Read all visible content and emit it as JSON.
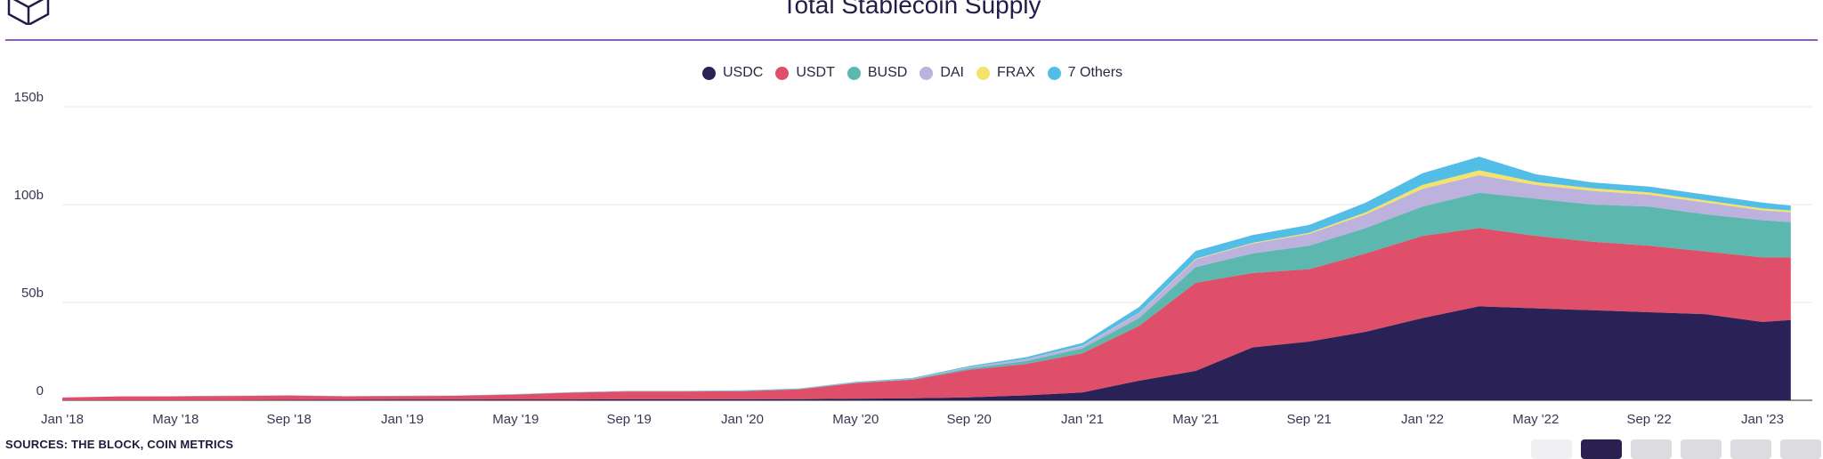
{
  "title": "Total Stablecoin Supply",
  "sources": "SOURCES: THE BLOCK, COIN METRICS",
  "colors": {
    "USDC": "#2a2256",
    "USDT": "#df4f69",
    "BUSD": "#5cb8ae",
    "DAI": "#bdb1de",
    "FRAX": "#f3e36a",
    "Others": "#52bde6",
    "accent_rule": "#8b5fbf"
  },
  "chart_data": {
    "type": "area",
    "stacked": true,
    "title": "Total Stablecoin Supply",
    "ylim": [
      0,
      150000000000
    ],
    "yticks": [
      "0",
      "50b",
      "100b",
      "150b"
    ],
    "xticks": [
      "Jan '18",
      "May '18",
      "Sep '18",
      "Jan '19",
      "May '19",
      "Sep '19",
      "Jan '20",
      "May '20",
      "Sep '20",
      "Jan '21",
      "May '21",
      "Sep '21",
      "Jan '22",
      "May '22",
      "Sep '22",
      "Jan '23"
    ],
    "legend_position": "top-center",
    "grid": true,
    "x": [
      "Jan '18",
      "Mar '18",
      "May '18",
      "Jul '18",
      "Sep '18",
      "Nov '18",
      "Jan '19",
      "Mar '19",
      "May '19",
      "Jul '19",
      "Sep '19",
      "Nov '19",
      "Jan '20",
      "Mar '20",
      "May '20",
      "Jul '20",
      "Sep '20",
      "Nov '20",
      "Jan '21",
      "Mar '21",
      "May '21",
      "Jul '21",
      "Sep '21",
      "Nov '21",
      "Jan '22",
      "Mar '22",
      "May '22",
      "Jul '22",
      "Sep '22",
      "Nov '22",
      "Jan '23",
      "Feb '23"
    ],
    "series": [
      {
        "name": "USDC",
        "values": [
          0,
          0,
          0,
          0,
          0.1,
          0.2,
          0.3,
          0.3,
          0.4,
          0.4,
          0.5,
          0.5,
          0.5,
          0.6,
          0.8,
          1.0,
          1.5,
          2.5,
          4,
          10,
          15,
          27,
          30,
          35,
          42,
          48,
          47,
          46,
          45,
          44,
          40,
          41
        ]
      },
      {
        "name": "USDT",
        "values": [
          1.4,
          2.0,
          2.0,
          2.2,
          2.3,
          1.8,
          1.8,
          2.0,
          2.5,
          3.5,
          4.0,
          4.0,
          4.1,
          5,
          8,
          9.5,
          14,
          16,
          20,
          28,
          45,
          38,
          37,
          40,
          42,
          40,
          37,
          35,
          34,
          32,
          33,
          32
        ]
      },
      {
        "name": "BUSD",
        "values": [
          0,
          0,
          0,
          0,
          0,
          0,
          0,
          0,
          0.1,
          0.1,
          0.2,
          0.2,
          0.2,
          0.2,
          0.2,
          0.3,
          0.8,
          1.5,
          2.5,
          4,
          8,
          10,
          12,
          13,
          15,
          18,
          19,
          19,
          20,
          19,
          19,
          18
        ]
      },
      {
        "name": "DAI",
        "values": [
          0,
          0,
          0,
          0.1,
          0.1,
          0.1,
          0.1,
          0.1,
          0.1,
          0.1,
          0.1,
          0.1,
          0.1,
          0.1,
          0.1,
          0.2,
          0.6,
          1.0,
          1.2,
          2.5,
          4,
          5,
          6,
          7,
          9,
          9,
          7,
          7,
          6,
          6,
          5,
          5
        ]
      },
      {
        "name": "FRAX",
        "values": [
          0,
          0,
          0,
          0,
          0,
          0,
          0,
          0,
          0,
          0,
          0,
          0,
          0,
          0,
          0,
          0,
          0,
          0,
          0.1,
          0.2,
          0.3,
          0.4,
          0.6,
          1,
          2,
          2.5,
          1.5,
          1.3,
          1.2,
          1.1,
          1.0,
          1.0
        ]
      },
      {
        "name": "7 Others",
        "values": [
          0,
          0,
          0.1,
          0.1,
          0.1,
          0.1,
          0.1,
          0.1,
          0.1,
          0.1,
          0.1,
          0.1,
          0.2,
          0.2,
          0.3,
          0.4,
          0.6,
          1.0,
          1.5,
          3,
          4,
          4,
          4,
          5,
          6,
          7,
          4,
          3,
          3,
          3,
          3,
          2.5
        ]
      }
    ],
    "value_unit": "b"
  }
}
